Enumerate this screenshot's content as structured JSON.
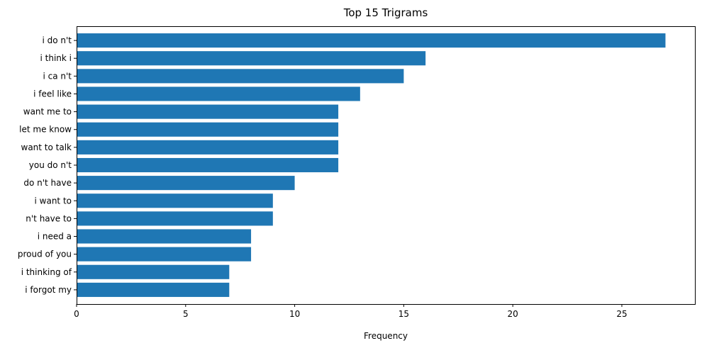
{
  "chart_data": {
    "type": "bar",
    "orientation": "horizontal",
    "title": "Top 15 Trigrams",
    "xlabel": "Frequency",
    "ylabel": "",
    "categories": [
      "i do n't",
      "i think i",
      "i ca n't",
      "i feel like",
      "want me to",
      "let me know",
      "want to talk",
      "you do n't",
      "do n't have",
      "i want to",
      "n't have to",
      "i need a",
      "proud of you",
      "i thinking of",
      "i forgot my"
    ],
    "values": [
      27,
      16,
      15,
      13,
      12,
      12,
      12,
      12,
      10,
      9,
      9,
      8,
      8,
      7,
      7
    ],
    "xlim": [
      0,
      28.35
    ],
    "xticks": [
      0,
      5,
      10,
      15,
      20,
      25
    ],
    "grid": false,
    "bar_color": "#1f77b4"
  }
}
